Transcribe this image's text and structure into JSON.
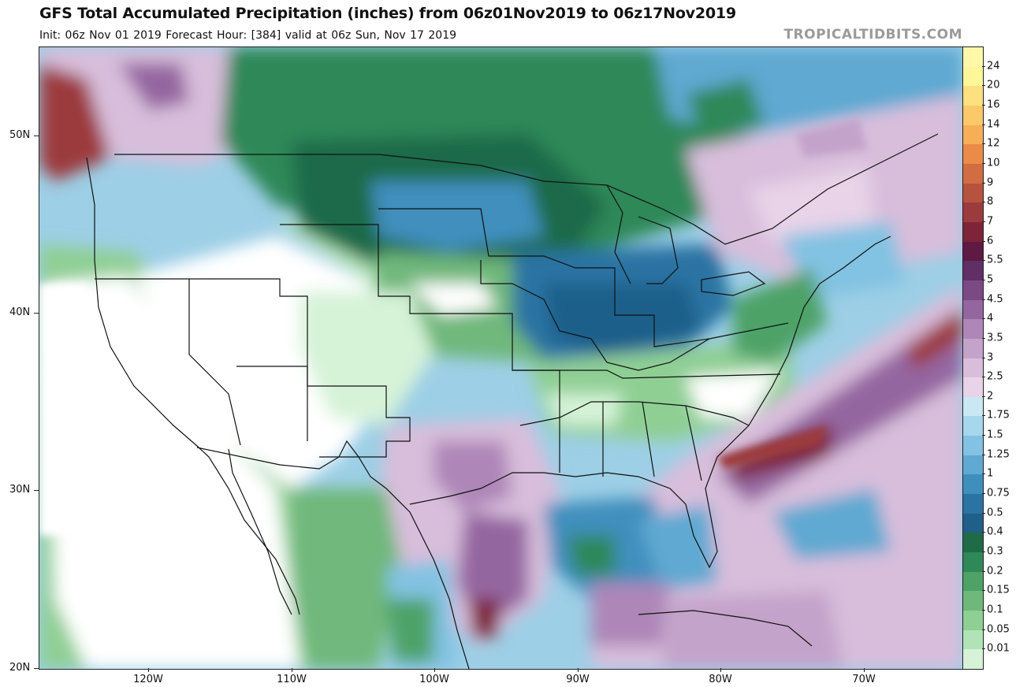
{
  "title": "GFS Total Accumulated Precipitation (inches) from 06z01Nov2019 to 06z17Nov2019",
  "subtitle": "Init: 06z Nov 01 2019   Forecast Hour: [384]   valid at 06z Sun, Nov 17 2019",
  "brand": "TROPICALTIDBITS.COM",
  "map": {
    "lat_labels": [
      "50N",
      "40N",
      "30N",
      "20N"
    ],
    "lon_labels": [
      "120W",
      "110W",
      "100W",
      "90W",
      "80W",
      "70W"
    ]
  },
  "legend": {
    "labels": [
      "24",
      "20",
      "16",
      "14",
      "12",
      "10",
      "9",
      "8",
      "7",
      "6",
      "5.5",
      "5",
      "4.5",
      "4",
      "3.5",
      "3",
      "2.5",
      "2",
      "1.75",
      "1.5",
      "1.25",
      "1",
      "0.75",
      "0.5",
      "0.4",
      "0.3",
      "0.2",
      "0.15",
      "0.1",
      "0.05",
      "0.01"
    ],
    "colors": [
      "#fef79a",
      "#fde080",
      "#fbc96a",
      "#f6ae57",
      "#eb8b47",
      "#d26c42",
      "#b7523f",
      "#9c3b3d",
      "#7e2338",
      "#5e1a42",
      "#5f2f66",
      "#7b4a85",
      "#9466a0",
      "#ae86b8",
      "#c4a3ca",
      "#d8bedb",
      "#e8d3e8",
      "#c9e8f4",
      "#a6d7ed",
      "#82c2e2",
      "#5fa9d2",
      "#3f8fbd",
      "#2b73a3",
      "#1f5f8a",
      "#1f6b48",
      "#2f8858",
      "#4ea268",
      "#6fb87c",
      "#8fcf94",
      "#b0e3b6",
      "#d6f3d8"
    ]
  }
}
